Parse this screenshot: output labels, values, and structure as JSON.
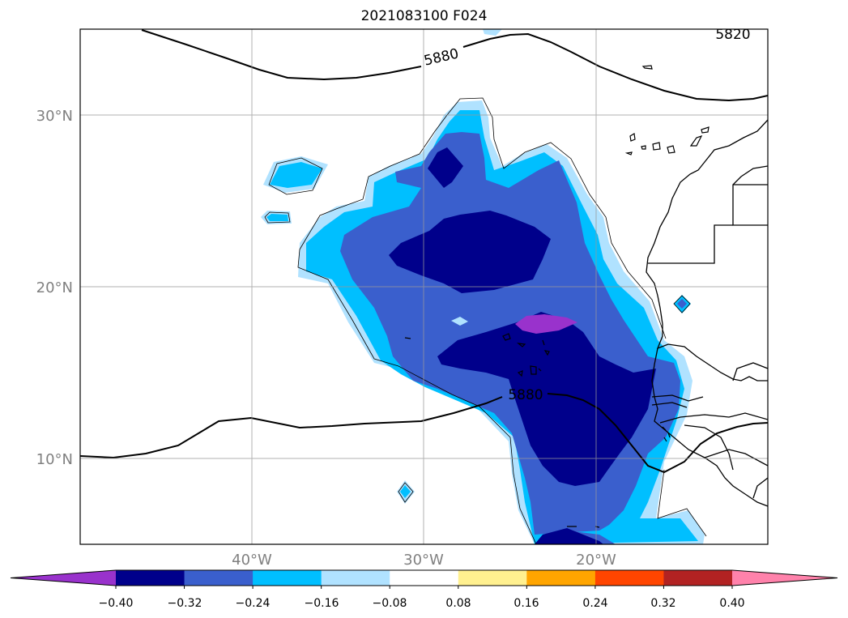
{
  "title": "2021083100 F024",
  "map": {
    "projection": "PlateCarree",
    "lon_range": [
      -50,
      -10
    ],
    "lat_range": [
      5,
      35
    ],
    "gridlines": true,
    "lat_ticks": [
      {
        "value": 30,
        "label": "30°N"
      },
      {
        "value": 20,
        "label": "20°N"
      },
      {
        "value": 10,
        "label": "10°N"
      }
    ],
    "lon_ticks": [
      {
        "value": -40,
        "label": "40°W"
      },
      {
        "value": -30,
        "label": "30°W"
      },
      {
        "value": -20,
        "label": "20°W"
      }
    ],
    "contour_labels": [
      {
        "text": "5880",
        "lon": -29.0,
        "lat": 32.6
      },
      {
        "text": "5880",
        "lon": -24.4,
        "lat": 13.7
      },
      {
        "text": "5820",
        "lon": -13.2,
        "lat": 34.6
      }
    ]
  },
  "colorbar": {
    "extend": "both",
    "colors": [
      "#9932cc",
      "#00008b",
      "#3a5fcd",
      "#00bfff",
      "#b0e2ff",
      "#ffffff",
      "#fff08f",
      "#ffa500",
      "#ff4500",
      "#b22222",
      "#ff82ab"
    ],
    "ticks": [
      "−0.40",
      "−0.32",
      "−0.24",
      "−0.16",
      "−0.08",
      "0.08",
      "0.16",
      "0.24",
      "0.32",
      "0.40"
    ]
  }
}
